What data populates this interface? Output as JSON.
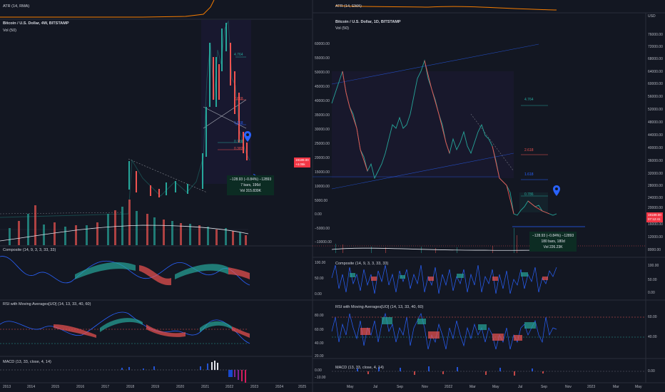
{
  "left": {
    "atr_title": "ATR (14, RMA)",
    "chart_title": "Bitcoin / U.S. Dollar, 4W, BITSTAMP",
    "vol_title": "Vol (50)",
    "composite_title": "Composite (14, 9, 3, 3, 33, 33)",
    "rsi_title": "RSI with Moving Averages[UO] (14, 13, 33, 40, 60)",
    "macd_title": "MACD (13, 33, close, 4, 14)",
    "price_tag": "19189.00",
    "price_tag_sub": "+4.05k",
    "fib_levels": [
      "4.764",
      "2.618",
      "1.618",
      "0.786",
      "0.382"
    ],
    "measure": {
      "line1": "−128.93 (−0.84%) −12893",
      "line2": "7 bars, 196d",
      "line3": "Vol 315.839K"
    },
    "time_axis": [
      "2013",
      "2014",
      "2015",
      "2016",
      "2017",
      "2018",
      "2019",
      "2020",
      "2021",
      "2022",
      "2023",
      "2024",
      "2025"
    ]
  },
  "right": {
    "atr_title": "ATR (14, EMA)",
    "chart_title": "Bitcoin / U.S. Dollar, 1D, BITSTAMP",
    "vol_title": "Vol (50)",
    "composite_title": "Composite (14, 9, 3, 3, 33, 33)",
    "rsi_title": "RSI with Moving Averages[UO] (14, 13, 33, 40, 60)",
    "macd_title": "MACD (13, 33, close, 4, 14)",
    "currency": "USD",
    "price_tag": "19189.00",
    "price_tag_sub": "07:12:41",
    "fib_levels": [
      "4.764",
      "2.618",
      "1.618",
      "0.786"
    ],
    "measure": {
      "line1": "−128.93 (−0.84%) −12893",
      "line2": "180 bars, 180d",
      "line3": "Vol 226.23K"
    },
    "left_axis": [
      "60000.00",
      "55000.00",
      "50000.00",
      "45000.00",
      "40000.00",
      "35000.00",
      "30000.00",
      "25000.00",
      "20000.00",
      "15000.00",
      "10000.00",
      "5000.00",
      "0.00",
      "−5000.00",
      "−10000.00"
    ],
    "price_axis": [
      "76000.00",
      "72000.00",
      "68000.00",
      "64000.00",
      "60000.00",
      "56000.00",
      "52000.00",
      "48000.00",
      "44000.00",
      "40000.00",
      "36000.00",
      "32000.00",
      "28000.00",
      "24000.00",
      "20000.00",
      "16000.00",
      "12000.00",
      "8000.00"
    ],
    "comp_axis_left": [
      "100.00",
      "50.00",
      "0.00"
    ],
    "comp_axis_right": [
      "100.00",
      "50.00",
      "0.00"
    ],
    "rsi_axis_left": [
      "80.00",
      "60.00",
      "40.00",
      "20.00"
    ],
    "rsi_axis_right": [
      "60.00",
      "40.00"
    ],
    "macd_axis_left": [
      "0.00",
      "−10.00"
    ],
    "macd_axis_right": [
      "0.00"
    ],
    "time_axis": [
      "May",
      "Jul",
      "Sep",
      "Nov",
      "2022",
      "Mar",
      "May",
      "Jul",
      "Sep",
      "Nov",
      "2023",
      "Mar",
      "May"
    ]
  },
  "colors": {
    "bg": "#131722",
    "up": "#26a69a",
    "down": "#ef5350",
    "accent": "#2962ff",
    "orange": "#f57c00"
  }
}
